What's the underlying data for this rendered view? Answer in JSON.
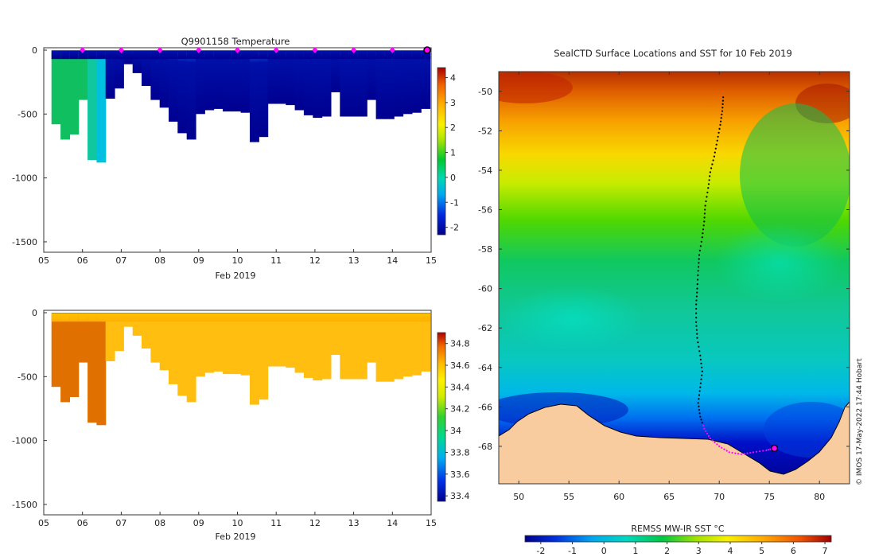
{
  "chart_data": [
    {
      "type": "heatmap",
      "title": "Q9901158  Temperature",
      "xlabel": "Feb 2019",
      "ylabel": "",
      "x_ticks": [
        "05",
        "06",
        "07",
        "08",
        "09",
        "10",
        "11",
        "12",
        "13",
        "14",
        "15"
      ],
      "y_ticks": [
        "0",
        "-500",
        "-1000",
        "-1500"
      ],
      "ylim": [
        -1600,
        0
      ],
      "xlim": [
        5,
        15
      ],
      "colorbar_ticks": [
        "4",
        "3",
        "2",
        "1",
        "0",
        "-1",
        "-2"
      ],
      "colorbar_range": [
        -2.3,
        4.4
      ],
      "profile_max_depth_m": [
        580,
        700,
        660,
        390,
        860,
        880,
        380,
        300,
        110,
        180,
        280,
        390,
        450,
        560,
        650,
        700,
        500,
        470,
        460,
        480,
        480,
        490,
        720,
        680,
        420,
        420,
        430,
        470,
        510,
        530,
        520,
        330,
        520,
        520,
        520,
        390,
        540,
        540,
        520,
        500,
        490,
        460
      ],
      "marker_days": [
        6,
        7,
        8,
        9,
        10,
        11,
        12,
        13,
        14
      ],
      "current_marker_day": 15,
      "colors": {
        "marker": "#ff00ff",
        "frame": "#333333"
      }
    },
    {
      "type": "heatmap",
      "title": "",
      "xlabel": "Feb 2019",
      "ylabel": "",
      "x_ticks": [
        "05",
        "06",
        "07",
        "08",
        "09",
        "10",
        "11",
        "12",
        "13",
        "14",
        "15"
      ],
      "y_ticks": [
        "0",
        "-500",
        "-1000",
        "-1500"
      ],
      "ylim": [
        -1600,
        0
      ],
      "xlim": [
        5,
        15
      ],
      "colorbar_ticks": [
        "34.8",
        "34.6",
        "34.4",
        "34.2",
        "34",
        "33.8",
        "33.6",
        "33.4"
      ],
      "colorbar_range": [
        33.35,
        34.9
      ]
    },
    {
      "type": "heatmap",
      "title": "SealCTD Surface Locations and SST for 10 Feb 2019",
      "xlabel": "",
      "ylabel": "",
      "x_ticks": [
        "50",
        "55",
        "60",
        "65",
        "70",
        "75",
        "80"
      ],
      "y_ticks": [
        "-50",
        "-52",
        "-54",
        "-56",
        "-58",
        "-60",
        "-62",
        "-64",
        "-66",
        "-68"
      ],
      "xlim": [
        48,
        83
      ],
      "ylim": [
        -69.9,
        -49.0
      ],
      "colorbar_label": "REMSS MW-IR SST °C",
      "colorbar_ticks": [
        "-2",
        "-1",
        "0",
        "1",
        "2",
        "3",
        "4",
        "5",
        "6",
        "7"
      ],
      "colorbar_range": [
        -2.5,
        7.2
      ],
      "track": [
        [
          70.4,
          -50.3
        ],
        [
          70.3,
          -51.0
        ],
        [
          70.1,
          -51.7
        ],
        [
          69.8,
          -52.5
        ],
        [
          69.5,
          -53.3
        ],
        [
          69.1,
          -54.1
        ],
        [
          68.9,
          -54.9
        ],
        [
          68.6,
          -55.8
        ],
        [
          68.5,
          -56.6
        ],
        [
          68.3,
          -57.4
        ],
        [
          68.0,
          -58.3
        ],
        [
          67.9,
          -59.1
        ],
        [
          67.8,
          -60.0
        ],
        [
          67.7,
          -60.8
        ],
        [
          67.7,
          -61.7
        ],
        [
          67.8,
          -62.5
        ],
        [
          68.1,
          -63.4
        ],
        [
          68.3,
          -64.2
        ],
        [
          68.1,
          -65.0
        ],
        [
          67.9,
          -65.8
        ],
        [
          68.1,
          -66.5
        ],
        [
          68.5,
          -67.1
        ],
        [
          69.1,
          -67.6
        ],
        [
          70.0,
          -68.0
        ],
        [
          71.0,
          -68.3
        ],
        [
          72.2,
          -68.4
        ],
        [
          73.4,
          -68.3
        ],
        [
          74.7,
          -68.2
        ],
        [
          75.5,
          -68.1
        ]
      ],
      "current_position": [
        75.5,
        -68.1
      ],
      "colors": {
        "land": "#f9cca0",
        "track": "#000000",
        "marker": "#ff00ff"
      }
    }
  ],
  "credit": "© IMOS 17-May-2022 17:44 Hobart"
}
